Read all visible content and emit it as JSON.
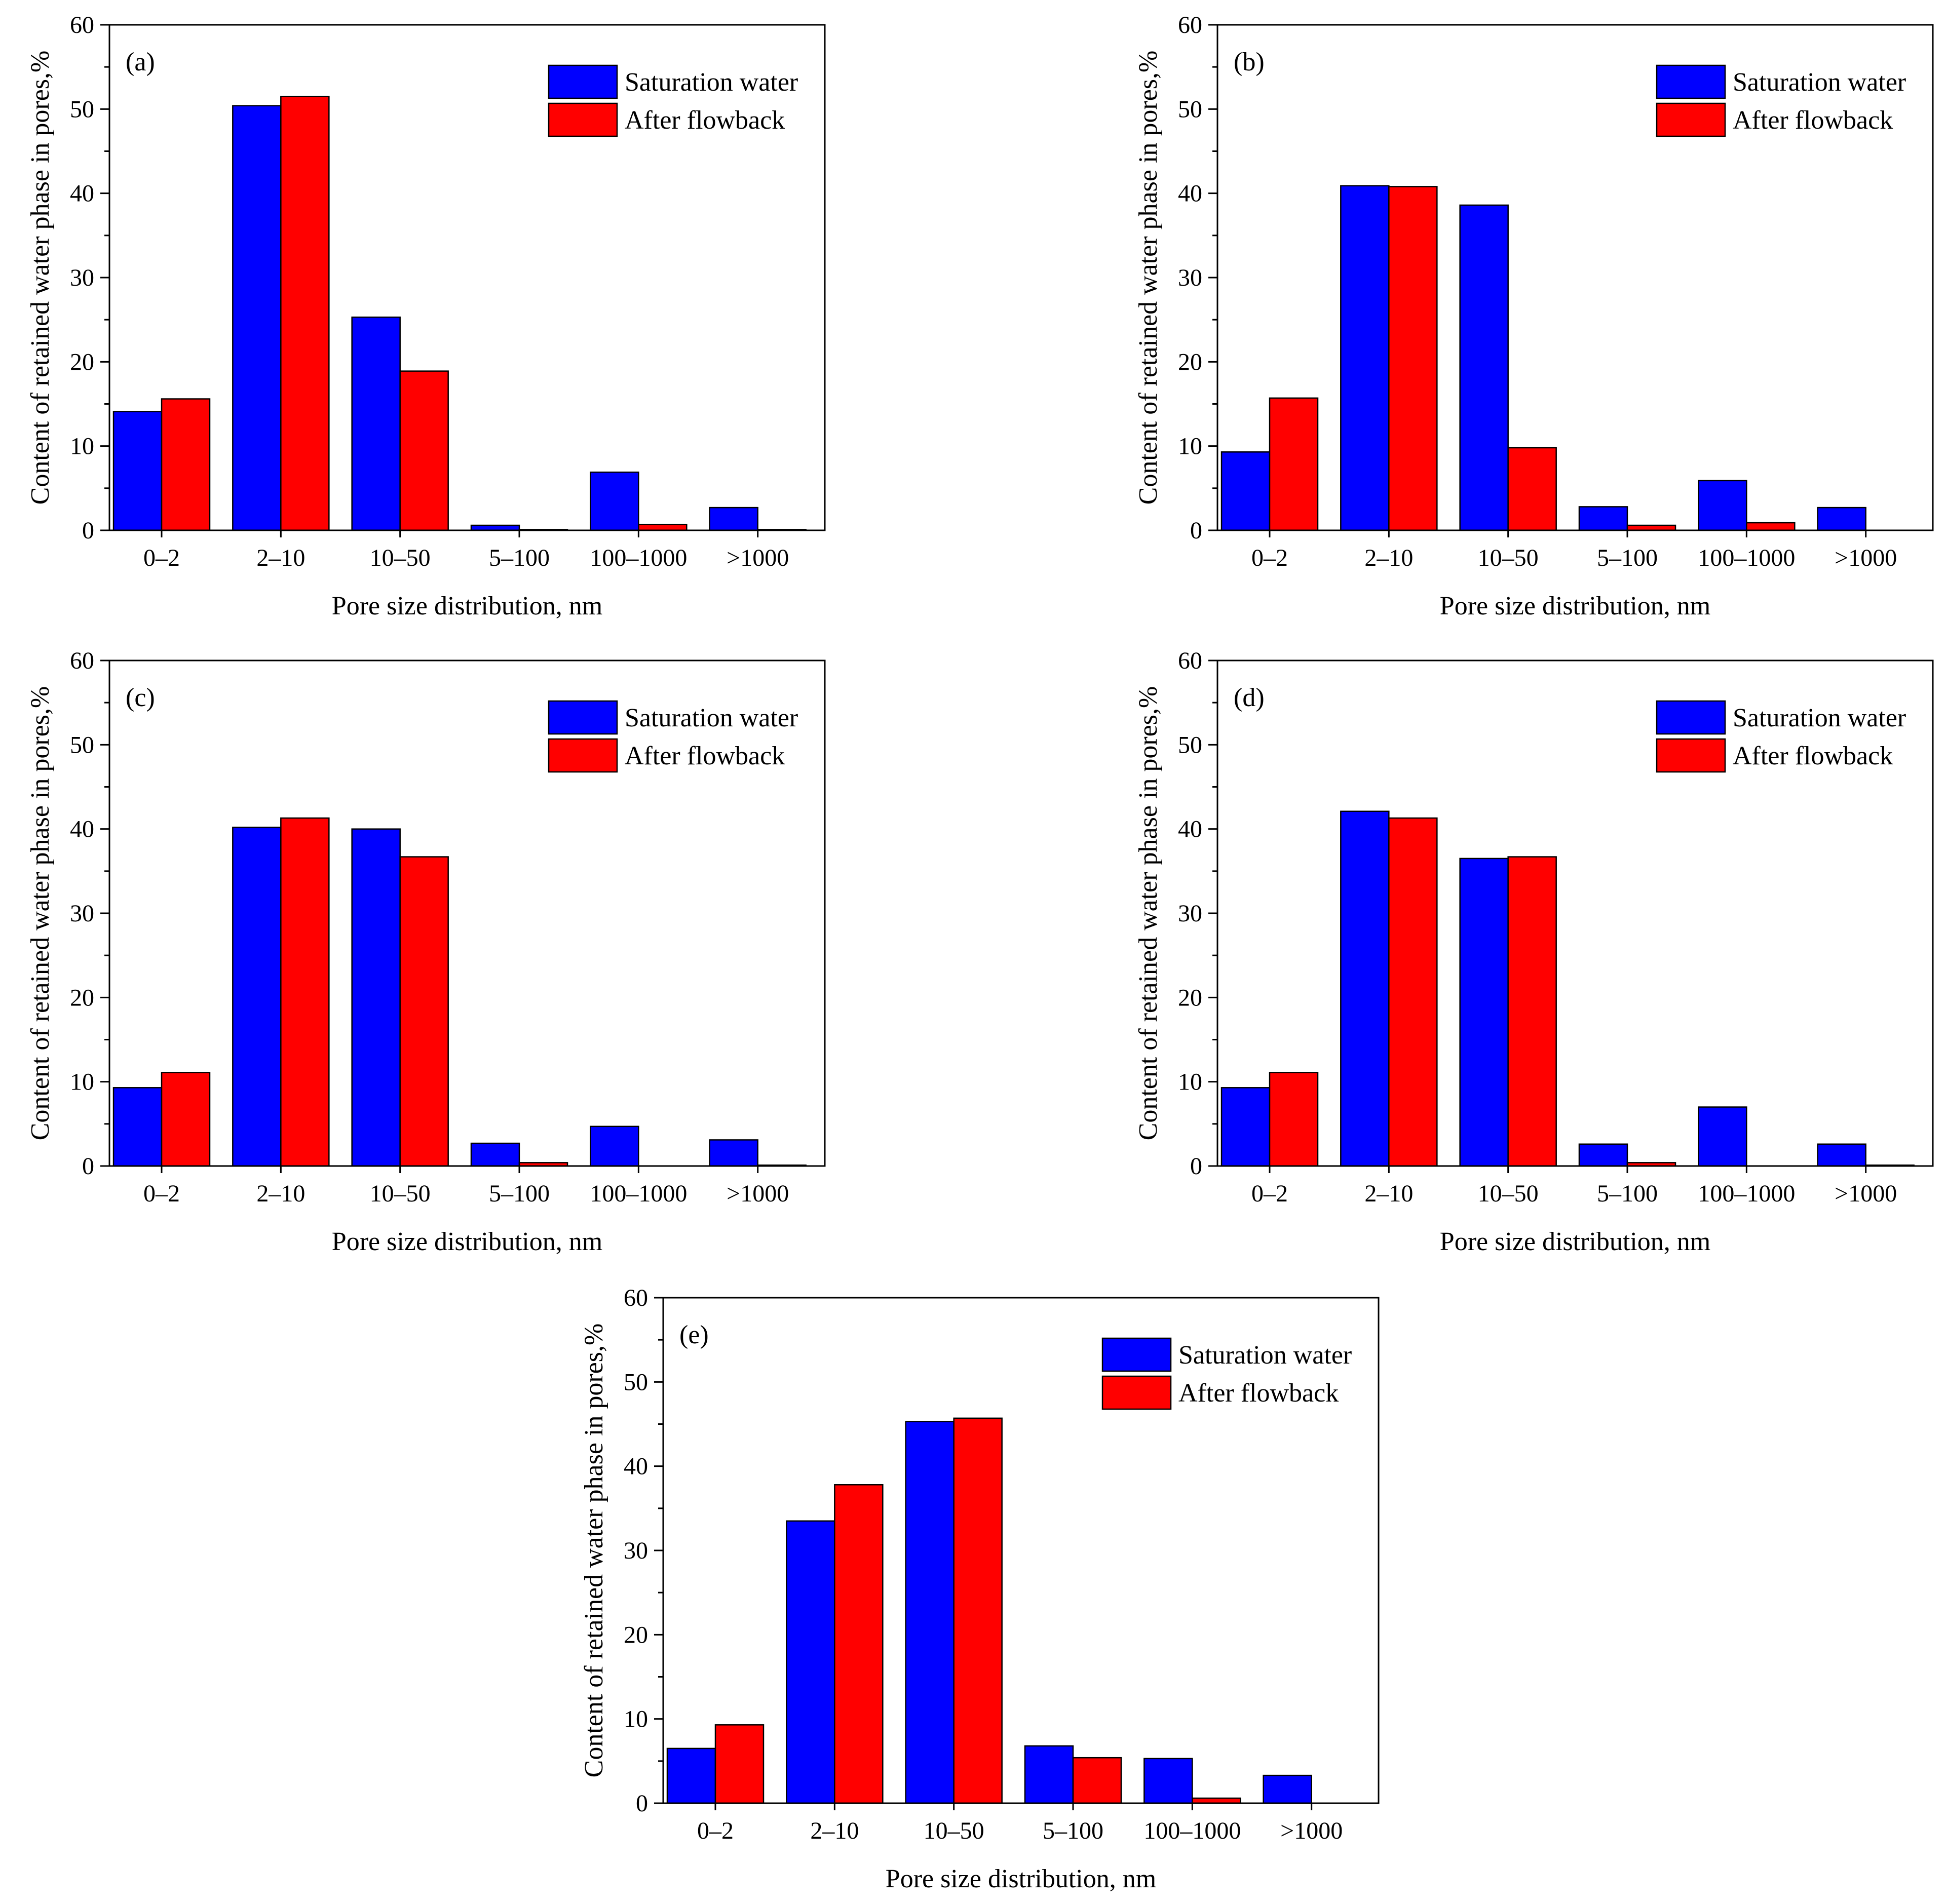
{
  "colors": {
    "saturation": "#0000ff",
    "flowback": "#ff0000",
    "axis": "#000000"
  },
  "chart_data": [
    {
      "panel": "(a)",
      "type": "bar",
      "categories": [
        "0–2",
        "2–10",
        "10–50",
        "5–100",
        "100–1000",
        ">1000"
      ],
      "series": [
        {
          "name": "Saturation water",
          "values": [
            14.1,
            50.4,
            25.3,
            0.6,
            6.9,
            2.7
          ]
        },
        {
          "name": "After flowback",
          "values": [
            15.6,
            51.5,
            18.9,
            0.1,
            0.7,
            0.1
          ]
        }
      ],
      "xlabel": "Pore size distribution, nm",
      "ylabel": "Content of retained water phase in pores,%",
      "ylim": [
        0,
        60
      ],
      "yticks": [
        "0",
        "10",
        "20",
        "30",
        "40",
        "50",
        "60"
      ],
      "legend": "top-right"
    },
    {
      "panel": "(b)",
      "type": "bar",
      "categories": [
        "0–2",
        "2–10",
        "10–50",
        "5–100",
        "100–1000",
        ">1000"
      ],
      "series": [
        {
          "name": "Saturation water",
          "values": [
            9.3,
            40.9,
            38.6,
            2.8,
            5.9,
            2.7
          ]
        },
        {
          "name": "After flowback",
          "values": [
            15.7,
            40.8,
            9.8,
            0.6,
            0.9,
            0.0
          ]
        }
      ],
      "xlabel": "Pore size distribution, nm",
      "ylabel": "Content of retained water phase in pores,%",
      "ylim": [
        0,
        60
      ],
      "yticks": [
        "0",
        "10",
        "20",
        "30",
        "40",
        "50",
        "60"
      ],
      "legend": "top-right"
    },
    {
      "panel": "(c)",
      "type": "bar",
      "categories": [
        "0–2",
        "2–10",
        "10–50",
        "5–100",
        "100–1000",
        ">1000"
      ],
      "series": [
        {
          "name": "Saturation water",
          "values": [
            9.3,
            40.2,
            40.0,
            2.7,
            4.7,
            3.1
          ]
        },
        {
          "name": "After flowback",
          "values": [
            11.1,
            41.3,
            36.7,
            0.4,
            0.0,
            0.1
          ]
        }
      ],
      "xlabel": "Pore size distribution, nm",
      "ylabel": "Content of retained water phase in pores,%",
      "ylim": [
        0,
        60
      ],
      "yticks": [
        "0",
        "10",
        "20",
        "30",
        "40",
        "50",
        "60"
      ],
      "legend": "top-right"
    },
    {
      "panel": "(d)",
      "type": "bar",
      "categories": [
        "0–2",
        "2–10",
        "10–50",
        "5–100",
        "100–1000",
        ">1000"
      ],
      "series": [
        {
          "name": "Saturation water",
          "values": [
            9.3,
            42.1,
            36.5,
            2.6,
            7.0,
            2.6
          ]
        },
        {
          "name": "After flowback",
          "values": [
            11.1,
            41.3,
            36.7,
            0.4,
            0.0,
            0.1
          ]
        }
      ],
      "xlabel": "Pore size distribution, nm",
      "ylabel": "Content of retained water phase in pores,%",
      "ylim": [
        0,
        60
      ],
      "yticks": [
        "0",
        "10",
        "20",
        "30",
        "40",
        "50",
        "60"
      ],
      "legend": "top-right"
    },
    {
      "panel": "(e)",
      "type": "bar",
      "categories": [
        "0–2",
        "2–10",
        "10–50",
        "5–100",
        "100–1000",
        ">1000"
      ],
      "series": [
        {
          "name": "Saturation water",
          "values": [
            6.5,
            33.5,
            45.3,
            6.8,
            5.3,
            3.3
          ]
        },
        {
          "name": "After flowback",
          "values": [
            9.3,
            37.8,
            45.7,
            5.4,
            0.6,
            0.0
          ]
        }
      ],
      "xlabel": "Pore size distribution, nm",
      "ylabel": "Content of retained water phase in pores,%",
      "ylim": [
        0,
        60
      ],
      "yticks": [
        "0",
        "10",
        "20",
        "30",
        "40",
        "50",
        "60"
      ],
      "legend": "top-right"
    }
  ]
}
